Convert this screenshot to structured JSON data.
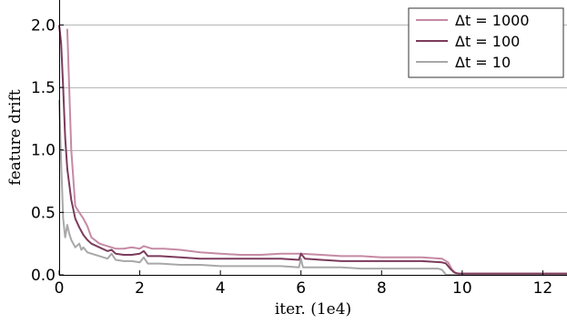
{
  "chart_data": {
    "type": "line",
    "title": "",
    "xlabel": "iter. (1e4)",
    "ylabel": "feature drift",
    "xlim": [
      0,
      12.6
    ],
    "ylim": [
      0,
      2.2
    ],
    "xticks": [
      0,
      2,
      4,
      6,
      8,
      10,
      12
    ],
    "yticks": [
      0.0,
      0.5,
      1.0,
      1.5,
      2.0
    ],
    "xtick_labels": [
      "0",
      "2",
      "4",
      "6",
      "8",
      "10",
      "12"
    ],
    "ytick_labels": [
      "0.0",
      "0.5",
      "1.0",
      "1.5",
      "2.0"
    ],
    "grid": "horizontal",
    "legend_position": "top-right",
    "series": [
      {
        "name": "Δt = 1000",
        "color": "#c58aa4",
        "x": [
          0.2,
          0.3,
          0.4,
          0.5,
          0.6,
          0.7,
          0.8,
          1.0,
          1.2,
          1.4,
          1.6,
          1.8,
          2.0,
          2.1,
          2.3,
          2.6,
          3.0,
          3.5,
          4.0,
          4.5,
          5.0,
          5.5,
          6.0,
          6.5,
          7.0,
          7.5,
          8.0,
          8.5,
          9.0,
          9.5,
          9.65,
          9.75,
          9.85,
          10.0,
          10.5,
          11.0,
          12.0,
          12.6
        ],
        "y": [
          1.97,
          1.0,
          0.55,
          0.5,
          0.45,
          0.39,
          0.3,
          0.25,
          0.23,
          0.21,
          0.21,
          0.22,
          0.21,
          0.23,
          0.21,
          0.21,
          0.2,
          0.18,
          0.17,
          0.16,
          0.16,
          0.17,
          0.17,
          0.16,
          0.15,
          0.15,
          0.14,
          0.14,
          0.14,
          0.13,
          0.1,
          0.04,
          0.01,
          0.01,
          0.01,
          0.01,
          0.01,
          0.01
        ]
      },
      {
        "name": "Δt = 100",
        "color": "#7b3b5c",
        "x": [
          0.0,
          0.05,
          0.1,
          0.15,
          0.2,
          0.3,
          0.4,
          0.5,
          0.6,
          0.7,
          0.8,
          1.0,
          1.2,
          1.3,
          1.4,
          1.6,
          1.8,
          2.0,
          2.1,
          2.2,
          2.5,
          3.0,
          3.5,
          4.0,
          4.5,
          5.0,
          5.5,
          5.95,
          6.0,
          6.1,
          6.5,
          7.0,
          7.5,
          8.0,
          8.5,
          9.0,
          9.5,
          9.6,
          9.7,
          9.8,
          9.9,
          10.0,
          10.5,
          11.0,
          12.0,
          12.6
        ],
        "y": [
          2.0,
          1.85,
          1.5,
          1.1,
          0.85,
          0.6,
          0.45,
          0.38,
          0.32,
          0.28,
          0.25,
          0.22,
          0.19,
          0.2,
          0.17,
          0.16,
          0.16,
          0.17,
          0.19,
          0.15,
          0.15,
          0.14,
          0.13,
          0.13,
          0.13,
          0.13,
          0.13,
          0.12,
          0.17,
          0.13,
          0.12,
          0.11,
          0.11,
          0.11,
          0.11,
          0.11,
          0.1,
          0.09,
          0.05,
          0.02,
          0.01,
          0.01,
          0.01,
          0.01,
          0.01,
          0.01
        ]
      },
      {
        "name": "Δt = 10",
        "color": "#a8a8a8",
        "x": [
          0.0,
          0.05,
          0.1,
          0.15,
          0.2,
          0.25,
          0.3,
          0.4,
          0.5,
          0.55,
          0.6,
          0.7,
          0.8,
          1.0,
          1.2,
          1.3,
          1.4,
          1.6,
          1.8,
          2.0,
          2.1,
          2.2,
          2.5,
          3.0,
          3.5,
          4.0,
          4.5,
          5.0,
          5.5,
          5.95,
          6.0,
          6.05,
          6.5,
          7.0,
          7.5,
          8.0,
          8.5,
          9.0,
          9.4,
          9.5,
          9.55,
          9.6,
          10.0,
          11.0,
          12.0,
          12.6
        ],
        "y": [
          1.4,
          0.9,
          0.45,
          0.3,
          0.4,
          0.33,
          0.28,
          0.22,
          0.25,
          0.2,
          0.22,
          0.18,
          0.17,
          0.15,
          0.13,
          0.17,
          0.12,
          0.11,
          0.11,
          0.1,
          0.14,
          0.09,
          0.09,
          0.08,
          0.08,
          0.07,
          0.07,
          0.07,
          0.07,
          0.06,
          0.13,
          0.06,
          0.06,
          0.06,
          0.05,
          0.05,
          0.05,
          0.05,
          0.05,
          0.04,
          0.02,
          0.0,
          0.0,
          0.0,
          0.0,
          0.0
        ]
      }
    ]
  }
}
